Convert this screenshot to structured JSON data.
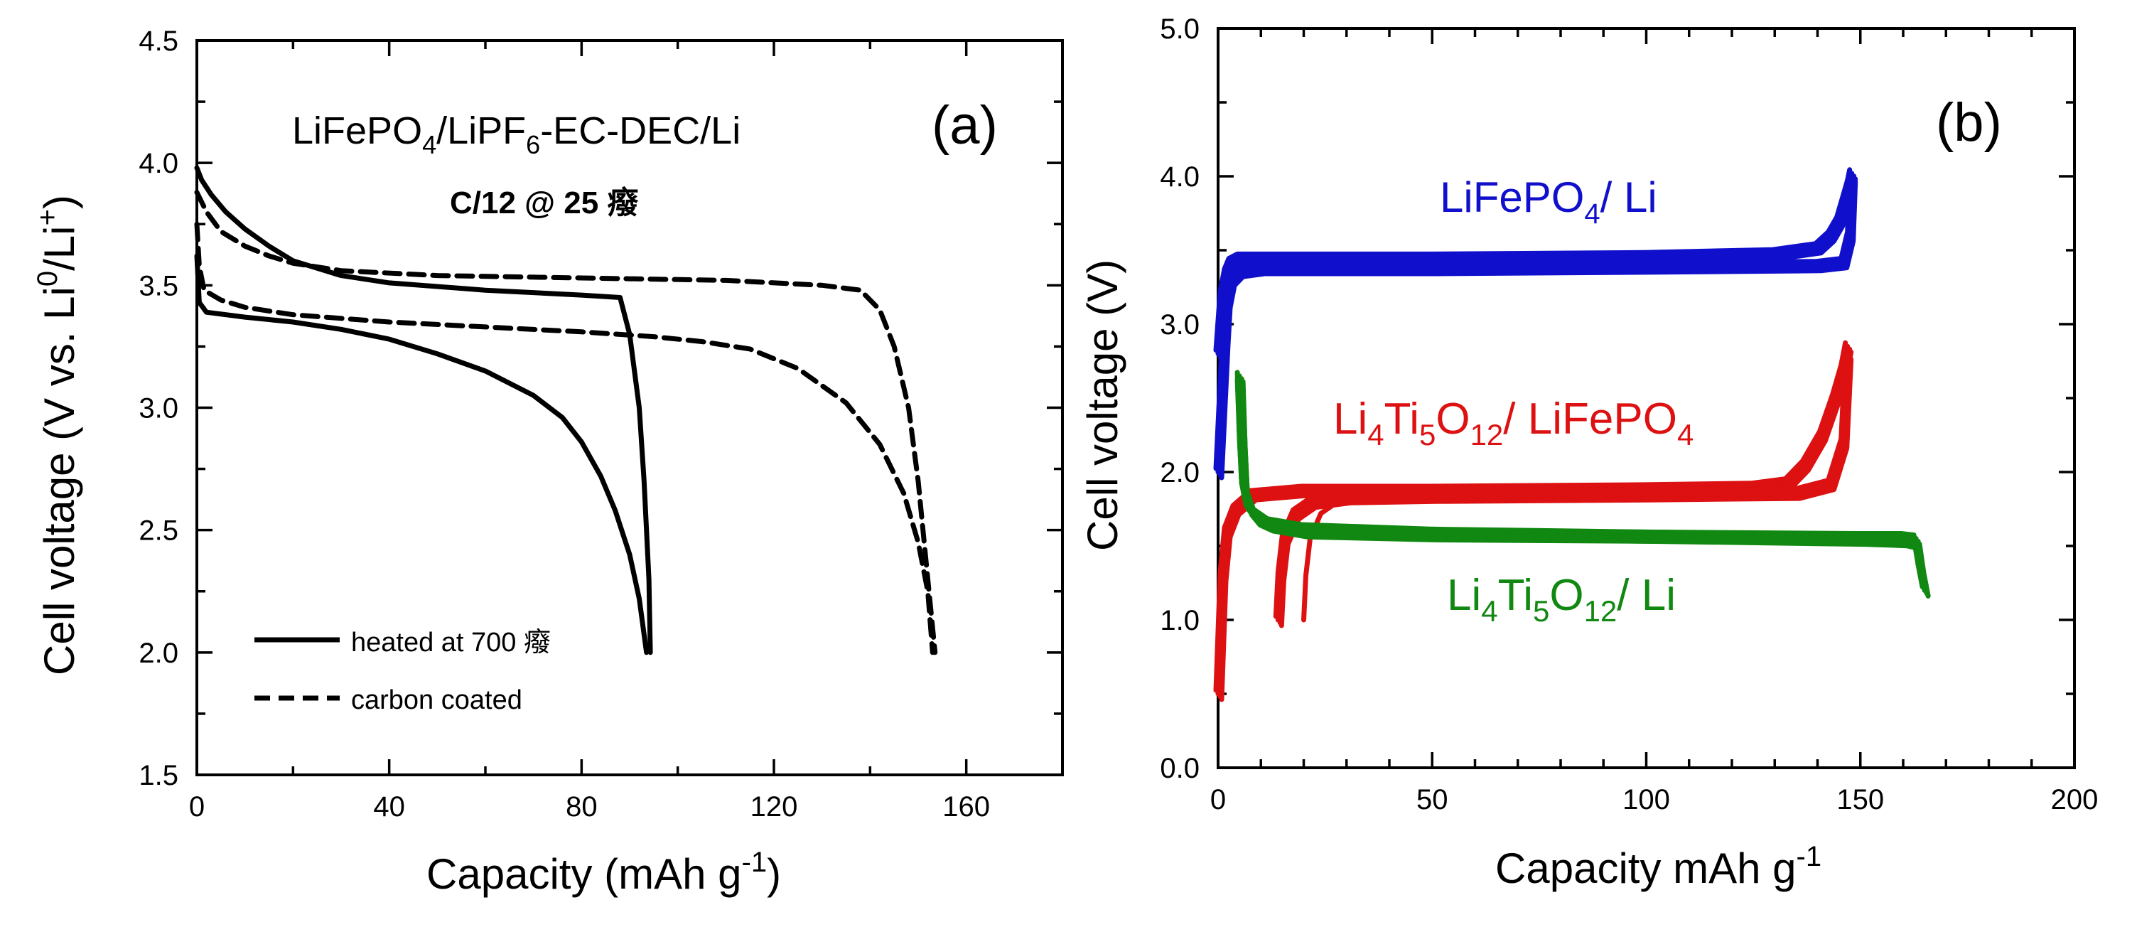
{
  "chart_data": [
    {
      "type": "line",
      "panel_label": "(a)",
      "title": "LiFePO4/LiPF6-EC-DEC/Li",
      "title_parts": {
        "base1": "LiFePO",
        "sub1": "4",
        "base2": "/LiPF",
        "sub2": "6",
        "base3": "-EC-DEC/Li"
      },
      "subtitle": "C/12 @ 25 癈",
      "xlabel": "Capacity (mAh g-1)",
      "xlabel_parts": {
        "base": "Capacity (mAh g",
        "sup": "-1",
        "end": ")"
      },
      "ylabel": "Cell voltage (V vs. Li0/Li+)",
      "ylabel_parts": {
        "base": "Cell voltage (V vs. Li",
        "sup1": "0",
        "mid": "/Li",
        "sup2": "+",
        "end": ")"
      },
      "xlim": [
        0,
        180
      ],
      "ylim": [
        1.5,
        4.5
      ],
      "xticks": [
        0,
        40,
        80,
        120,
        160
      ],
      "yticks": [
        1.5,
        2.0,
        2.5,
        3.0,
        3.5,
        4.0,
        4.5
      ],
      "xtick_labels": [
        "0",
        "40",
        "80",
        "120",
        "160"
      ],
      "ytick_labels": [
        "1.5",
        "2.0",
        "2.5",
        "3.0",
        "3.5",
        "4.0",
        "4.5"
      ],
      "legend_position": "bottom-left",
      "series": [
        {
          "name": "heated at 700 癈",
          "style": "solid",
          "color": "#000000",
          "charge": {
            "x": [
              0,
              1,
              3,
              6,
              10,
              15,
              20,
              30,
              40,
              60,
              80,
              88,
              90,
              92,
              93,
              94,
              94.3
            ],
            "y": [
              3.98,
              3.93,
              3.87,
              3.8,
              3.73,
              3.66,
              3.6,
              3.54,
              3.51,
              3.48,
              3.46,
              3.45,
              3.3,
              3.0,
              2.7,
              2.3,
              2.0
            ]
          },
          "discharge": {
            "x": [
              0,
              0.5,
              2,
              10,
              20,
              30,
              40,
              50,
              60,
              70,
              76,
              80,
              84,
              87,
              90,
              92,
              93.5
            ],
            "y": [
              3.62,
              3.43,
              3.39,
              3.37,
              3.35,
              3.32,
              3.28,
              3.22,
              3.15,
              3.05,
              2.96,
              2.86,
              2.72,
              2.58,
              2.4,
              2.22,
              2.0
            ]
          }
        },
        {
          "name": "carbon coated",
          "style": "dashed",
          "color": "#000000",
          "charge": {
            "x": [
              0,
              2,
              5,
              10,
              15,
              20,
              30,
              50,
              80,
              110,
              130,
              138,
              142,
              145,
              148,
              150,
              152,
              153.5
            ],
            "y": [
              3.88,
              3.8,
              3.72,
              3.66,
              3.62,
              3.59,
              3.56,
              3.54,
              3.53,
              3.52,
              3.5,
              3.48,
              3.4,
              3.25,
              3.0,
              2.7,
              2.3,
              2.0
            ]
          },
          "discharge": {
            "x": [
              0,
              0.5,
              1.5,
              5,
              10,
              20,
              40,
              60,
              80,
              95,
              105,
              115,
              125,
              135,
              142,
              147,
              150,
              152,
              153
            ],
            "y": [
              3.75,
              3.58,
              3.48,
              3.44,
              3.41,
              3.38,
              3.35,
              3.33,
              3.31,
              3.29,
              3.27,
              3.24,
              3.16,
              3.02,
              2.85,
              2.65,
              2.45,
              2.25,
              2.0
            ]
          }
        }
      ]
    },
    {
      "type": "line",
      "panel_label": "(b)",
      "xlabel": "Capacity mAh g-1",
      "xlabel_parts": {
        "base": "Capacity mAh g",
        "sup": "-1"
      },
      "ylabel": "Cell voltage (V)",
      "xlim": [
        0,
        200
      ],
      "ylim": [
        0.0,
        5.0
      ],
      "xticks": [
        0,
        50,
        100,
        150,
        200
      ],
      "yticks": [
        0.0,
        1.0,
        2.0,
        3.0,
        4.0,
        5.0
      ],
      "xtick_labels": [
        "0",
        "50",
        "100",
        "150",
        "200"
      ],
      "ytick_labels": [
        "0.0",
        "1.0",
        "2.0",
        "3.0",
        "4.0",
        "5.0"
      ],
      "series": [
        {
          "name": "LiFePO4/ Li",
          "label_parts": {
            "base1": "LiFePO",
            "sub1": "4",
            "base2": "/ Li"
          },
          "color": "#1010cc",
          "charge": {
            "x": [
              0,
              1,
              2,
              3,
              5,
              10,
              50,
              100,
              130,
              140,
              143,
              145,
              146.5,
              147.5,
              148
            ],
            "y": [
              2.8,
              3.2,
              3.35,
              3.42,
              3.45,
              3.45,
              3.45,
              3.46,
              3.48,
              3.52,
              3.6,
              3.7,
              3.85,
              3.95,
              4.02
            ]
          },
          "discharge": {
            "x": [
              148,
              147.5,
              146,
              140,
              100,
              50,
              10,
              5,
              3,
              2,
              1.5,
              1,
              0.5,
              0
            ],
            "y": [
              4.0,
              3.6,
              3.42,
              3.4,
              3.39,
              3.38,
              3.38,
              3.36,
              3.3,
              3.15,
              2.9,
              2.6,
              2.3,
              2.0
            ]
          }
        },
        {
          "name": "Li4Ti5O12/ LiFePO4",
          "label_parts": {
            "base1": "Li",
            "sub1": "4",
            "base2": "Ti",
            "sub2": "5",
            "base3": "O",
            "sub3": "12",
            "base4": "/ LiFePO",
            "sub4": "4"
          },
          "color": "#dd1111",
          "charge": {
            "x": [
              0,
              1,
              2,
              4,
              8,
              20,
              50,
              100,
              125,
              133,
              137,
              141,
              144,
              146,
              147
            ],
            "y": [
              0.5,
              1.3,
              1.6,
              1.75,
              1.85,
              1.88,
              1.88,
              1.89,
              1.9,
              1.93,
              2.05,
              2.25,
              2.5,
              2.7,
              2.85
            ]
          },
          "discharge": {
            "x": [
              147,
              146,
              143,
              135,
              100,
              50,
              30,
              22,
              18,
              15.5,
              14.5,
              14
            ],
            "y": [
              2.8,
              2.2,
              1.92,
              1.86,
              1.85,
              1.84,
              1.83,
              1.8,
              1.72,
              1.55,
              1.3,
              1.0
            ]
          }
        },
        {
          "name": "Li4Ti5O12/ Li",
          "label_parts": {
            "base1": "Li",
            "sub1": "4",
            "base2": "Ti",
            "sub2": "5",
            "base3": "O",
            "sub3": "12",
            "base4": "/ Li"
          },
          "color": "#118811",
          "charge": {
            "x": [
              5,
              5.5,
              6,
              7,
              9,
              12,
              20,
              50,
              100,
              150,
              160,
              163,
              164,
              165
            ],
            "y": [
              2.65,
              2.2,
              1.9,
              1.75,
              1.68,
              1.64,
              1.6,
              1.58,
              1.57,
              1.56,
              1.56,
              1.55,
              1.35,
              1.2
            ]
          },
          "discharge": {
            "x": [
              165,
              164,
              163,
              160,
              150,
              100,
              50,
              20,
              12,
              8,
              6,
              5.5,
              5
            ],
            "y": [
              1.2,
              1.35,
              1.52,
              1.54,
              1.55,
              1.57,
              1.59,
              1.62,
              1.66,
              1.74,
              1.9,
              2.2,
              2.6
            ]
          }
        }
      ]
    }
  ]
}
